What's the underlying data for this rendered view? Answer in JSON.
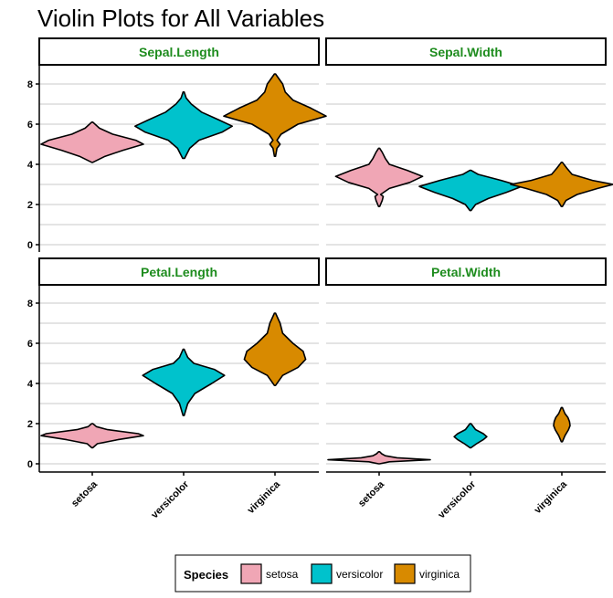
{
  "title": "Violin Plots for All Variables",
  "chart_data": {
    "type": "violin",
    "categories": [
      "setosa",
      "versicolor",
      "virginica"
    ],
    "ylim": [
      0,
      9
    ],
    "yticks": [
      0,
      2,
      4,
      6,
      8
    ],
    "grid": "horizontal",
    "facets": [
      {
        "label": "Sepal.Length",
        "violins": [
          {
            "category": "setosa",
            "min": 4.1,
            "max": 6.1,
            "profile": [
              [
                4.1,
                0.01
              ],
              [
                4.4,
                0.25
              ],
              [
                4.7,
                0.6
              ],
              [
                5.0,
                1.0
              ],
              [
                5.2,
                0.85
              ],
              [
                5.5,
                0.4
              ],
              [
                5.8,
                0.14
              ],
              [
                6.1,
                0.01
              ]
            ]
          },
          {
            "category": "versicolor",
            "min": 4.3,
            "max": 7.6,
            "profile": [
              [
                4.3,
                0.02
              ],
              [
                4.8,
                0.12
              ],
              [
                5.2,
                0.3
              ],
              [
                5.6,
                0.75
              ],
              [
                5.9,
                0.95
              ],
              [
                6.2,
                0.7
              ],
              [
                6.6,
                0.35
              ],
              [
                7.0,
                0.15
              ],
              [
                7.3,
                0.05
              ],
              [
                7.6,
                0.01
              ]
            ]
          },
          {
            "category": "virginica",
            "min": 4.4,
            "max": 8.5,
            "profile": [
              [
                4.4,
                0.01
              ],
              [
                4.8,
                0.04
              ],
              [
                5.0,
                0.1
              ],
              [
                5.2,
                0.04
              ],
              [
                5.5,
                0.12
              ],
              [
                6.0,
                0.45
              ],
              [
                6.4,
                1.0
              ],
              [
                6.8,
                0.7
              ],
              [
                7.2,
                0.35
              ],
              [
                7.6,
                0.2
              ],
              [
                8.0,
                0.15
              ],
              [
                8.5,
                0.01
              ]
            ]
          }
        ]
      },
      {
        "label": "Sepal.Width",
        "violins": [
          {
            "category": "setosa",
            "min": 1.9,
            "max": 4.8,
            "profile": [
              [
                1.9,
                0.01
              ],
              [
                2.2,
                0.06
              ],
              [
                2.4,
                0.08
              ],
              [
                2.5,
                0.03
              ],
              [
                2.8,
                0.2
              ],
              [
                3.1,
                0.6
              ],
              [
                3.4,
                0.85
              ],
              [
                3.7,
                0.55
              ],
              [
                4.0,
                0.2
              ],
              [
                4.3,
                0.12
              ],
              [
                4.6,
                0.06
              ],
              [
                4.8,
                0.01
              ]
            ]
          },
          {
            "category": "versicolor",
            "min": 1.7,
            "max": 3.7,
            "profile": [
              [
                1.7,
                0.01
              ],
              [
                2.0,
                0.1
              ],
              [
                2.3,
                0.35
              ],
              [
                2.6,
                0.7
              ],
              [
                2.9,
                1.0
              ],
              [
                3.2,
                0.6
              ],
              [
                3.5,
                0.15
              ],
              [
                3.7,
                0.01
              ]
            ]
          },
          {
            "category": "virginica",
            "min": 1.9,
            "max": 4.1,
            "profile": [
              [
                1.9,
                0.01
              ],
              [
                2.2,
                0.08
              ],
              [
                2.5,
                0.3
              ],
              [
                2.8,
                0.7
              ],
              [
                3.0,
                1.0
              ],
              [
                3.2,
                0.6
              ],
              [
                3.5,
                0.2
              ],
              [
                3.8,
                0.1
              ],
              [
                4.1,
                0.01
              ]
            ]
          }
        ]
      },
      {
        "label": "Petal.Length",
        "violins": [
          {
            "category": "setosa",
            "min": 0.8,
            "max": 2.0,
            "profile": [
              [
                0.8,
                0.01
              ],
              [
                1.0,
                0.1
              ],
              [
                1.2,
                0.5
              ],
              [
                1.4,
                1.0
              ],
              [
                1.5,
                0.9
              ],
              [
                1.7,
                0.3
              ],
              [
                1.85,
                0.08
              ],
              [
                2.0,
                0.01
              ]
            ]
          },
          {
            "category": "versicolor",
            "min": 2.4,
            "max": 5.7,
            "profile": [
              [
                2.4,
                0.01
              ],
              [
                3.0,
                0.08
              ],
              [
                3.5,
                0.22
              ],
              [
                4.0,
                0.55
              ],
              [
                4.4,
                0.8
              ],
              [
                4.7,
                0.6
              ],
              [
                5.0,
                0.2
              ],
              [
                5.3,
                0.08
              ],
              [
                5.7,
                0.01
              ]
            ]
          },
          {
            "category": "virginica",
            "min": 3.9,
            "max": 7.5,
            "profile": [
              [
                3.9,
                0.01
              ],
              [
                4.4,
                0.15
              ],
              [
                4.8,
                0.45
              ],
              [
                5.2,
                0.6
              ],
              [
                5.6,
                0.55
              ],
              [
                6.0,
                0.35
              ],
              [
                6.5,
                0.15
              ],
              [
                7.0,
                0.1
              ],
              [
                7.5,
                0.01
              ]
            ]
          }
        ]
      },
      {
        "label": "Petal.Width",
        "violins": [
          {
            "category": "setosa",
            "min": 0.0,
            "max": 0.6,
            "profile": [
              [
                0.0,
                0.01
              ],
              [
                0.1,
                0.2
              ],
              [
                0.2,
                1.0
              ],
              [
                0.3,
                0.35
              ],
              [
                0.4,
                0.12
              ],
              [
                0.5,
                0.05
              ],
              [
                0.6,
                0.01
              ]
            ]
          },
          {
            "category": "versicolor",
            "min": 0.8,
            "max": 2.0,
            "profile": [
              [
                0.8,
                0.01
              ],
              [
                1.0,
                0.12
              ],
              [
                1.2,
                0.25
              ],
              [
                1.35,
                0.32
              ],
              [
                1.5,
                0.25
              ],
              [
                1.7,
                0.1
              ],
              [
                2.0,
                0.01
              ]
            ]
          },
          {
            "category": "virginica",
            "min": 1.1,
            "max": 2.8,
            "profile": [
              [
                1.1,
                0.01
              ],
              [
                1.4,
                0.06
              ],
              [
                1.7,
                0.13
              ],
              [
                1.9,
                0.16
              ],
              [
                2.1,
                0.15
              ],
              [
                2.3,
                0.12
              ],
              [
                2.5,
                0.06
              ],
              [
                2.8,
                0.01
              ]
            ]
          }
        ]
      }
    ],
    "colors": {
      "setosa": "#f0a6b5",
      "versicolor": "#00c2cc",
      "virginica": "#d88a00"
    },
    "strip_text_color": "#1e8c1e",
    "legend": {
      "title": "Species",
      "position": "bottom",
      "entries": [
        "setosa",
        "versicolor",
        "virginica"
      ]
    }
  }
}
